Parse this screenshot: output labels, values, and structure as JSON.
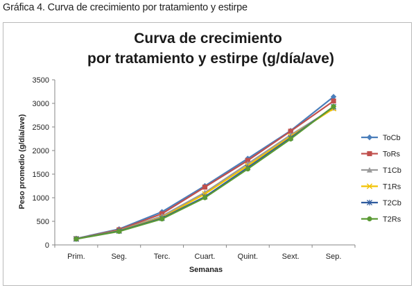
{
  "caption": "Gráfica 4. Curva de crecimiento por tratamiento y estirpe",
  "chart_data": {
    "type": "line",
    "title_lines": [
      "Curva de crecimiento",
      "por tratamiento y estirpe (g/día/ave)"
    ],
    "xlabel": "Semanas",
    "ylabel": "Peso promedio (g/día/ave)",
    "categories": [
      "Prim.",
      "Seg.",
      "Terc.",
      "Cuart.",
      "Quint.",
      "Sext.",
      "Sep."
    ],
    "ylim": [
      0,
      3500
    ],
    "yticks": [
      0,
      500,
      1000,
      1500,
      2000,
      2500,
      3000,
      3500
    ],
    "grid": false,
    "legend_position": "right",
    "series": [
      {
        "name": "ToCb",
        "color": "#4a7ebb",
        "marker": "diamond",
        "values": [
          135,
          335,
          700,
          1250,
          1830,
          2420,
          3140
        ]
      },
      {
        "name": "ToRs",
        "color": "#c0504d",
        "marker": "square",
        "values": [
          130,
          320,
          660,
          1225,
          1790,
          2410,
          3050
        ]
      },
      {
        "name": "T1Cb",
        "color": "#9a9a9a",
        "marker": "triangle",
        "values": [
          125,
          305,
          610,
          1110,
          1720,
          2330,
          2900
        ]
      },
      {
        "name": "T1Rs",
        "color": "#f2c200",
        "marker": "x",
        "values": [
          130,
          300,
          580,
          1080,
          1680,
          2300,
          2890
        ]
      },
      {
        "name": "T2Cb",
        "color": "#2e5a9e",
        "marker": "star",
        "values": [
          128,
          295,
          565,
          1020,
          1640,
          2270,
          2930
        ]
      },
      {
        "name": "T2Rs",
        "color": "#5b9a35",
        "marker": "circle",
        "values": [
          125,
          285,
          550,
          1000,
          1610,
          2245,
          2935
        ]
      }
    ]
  }
}
